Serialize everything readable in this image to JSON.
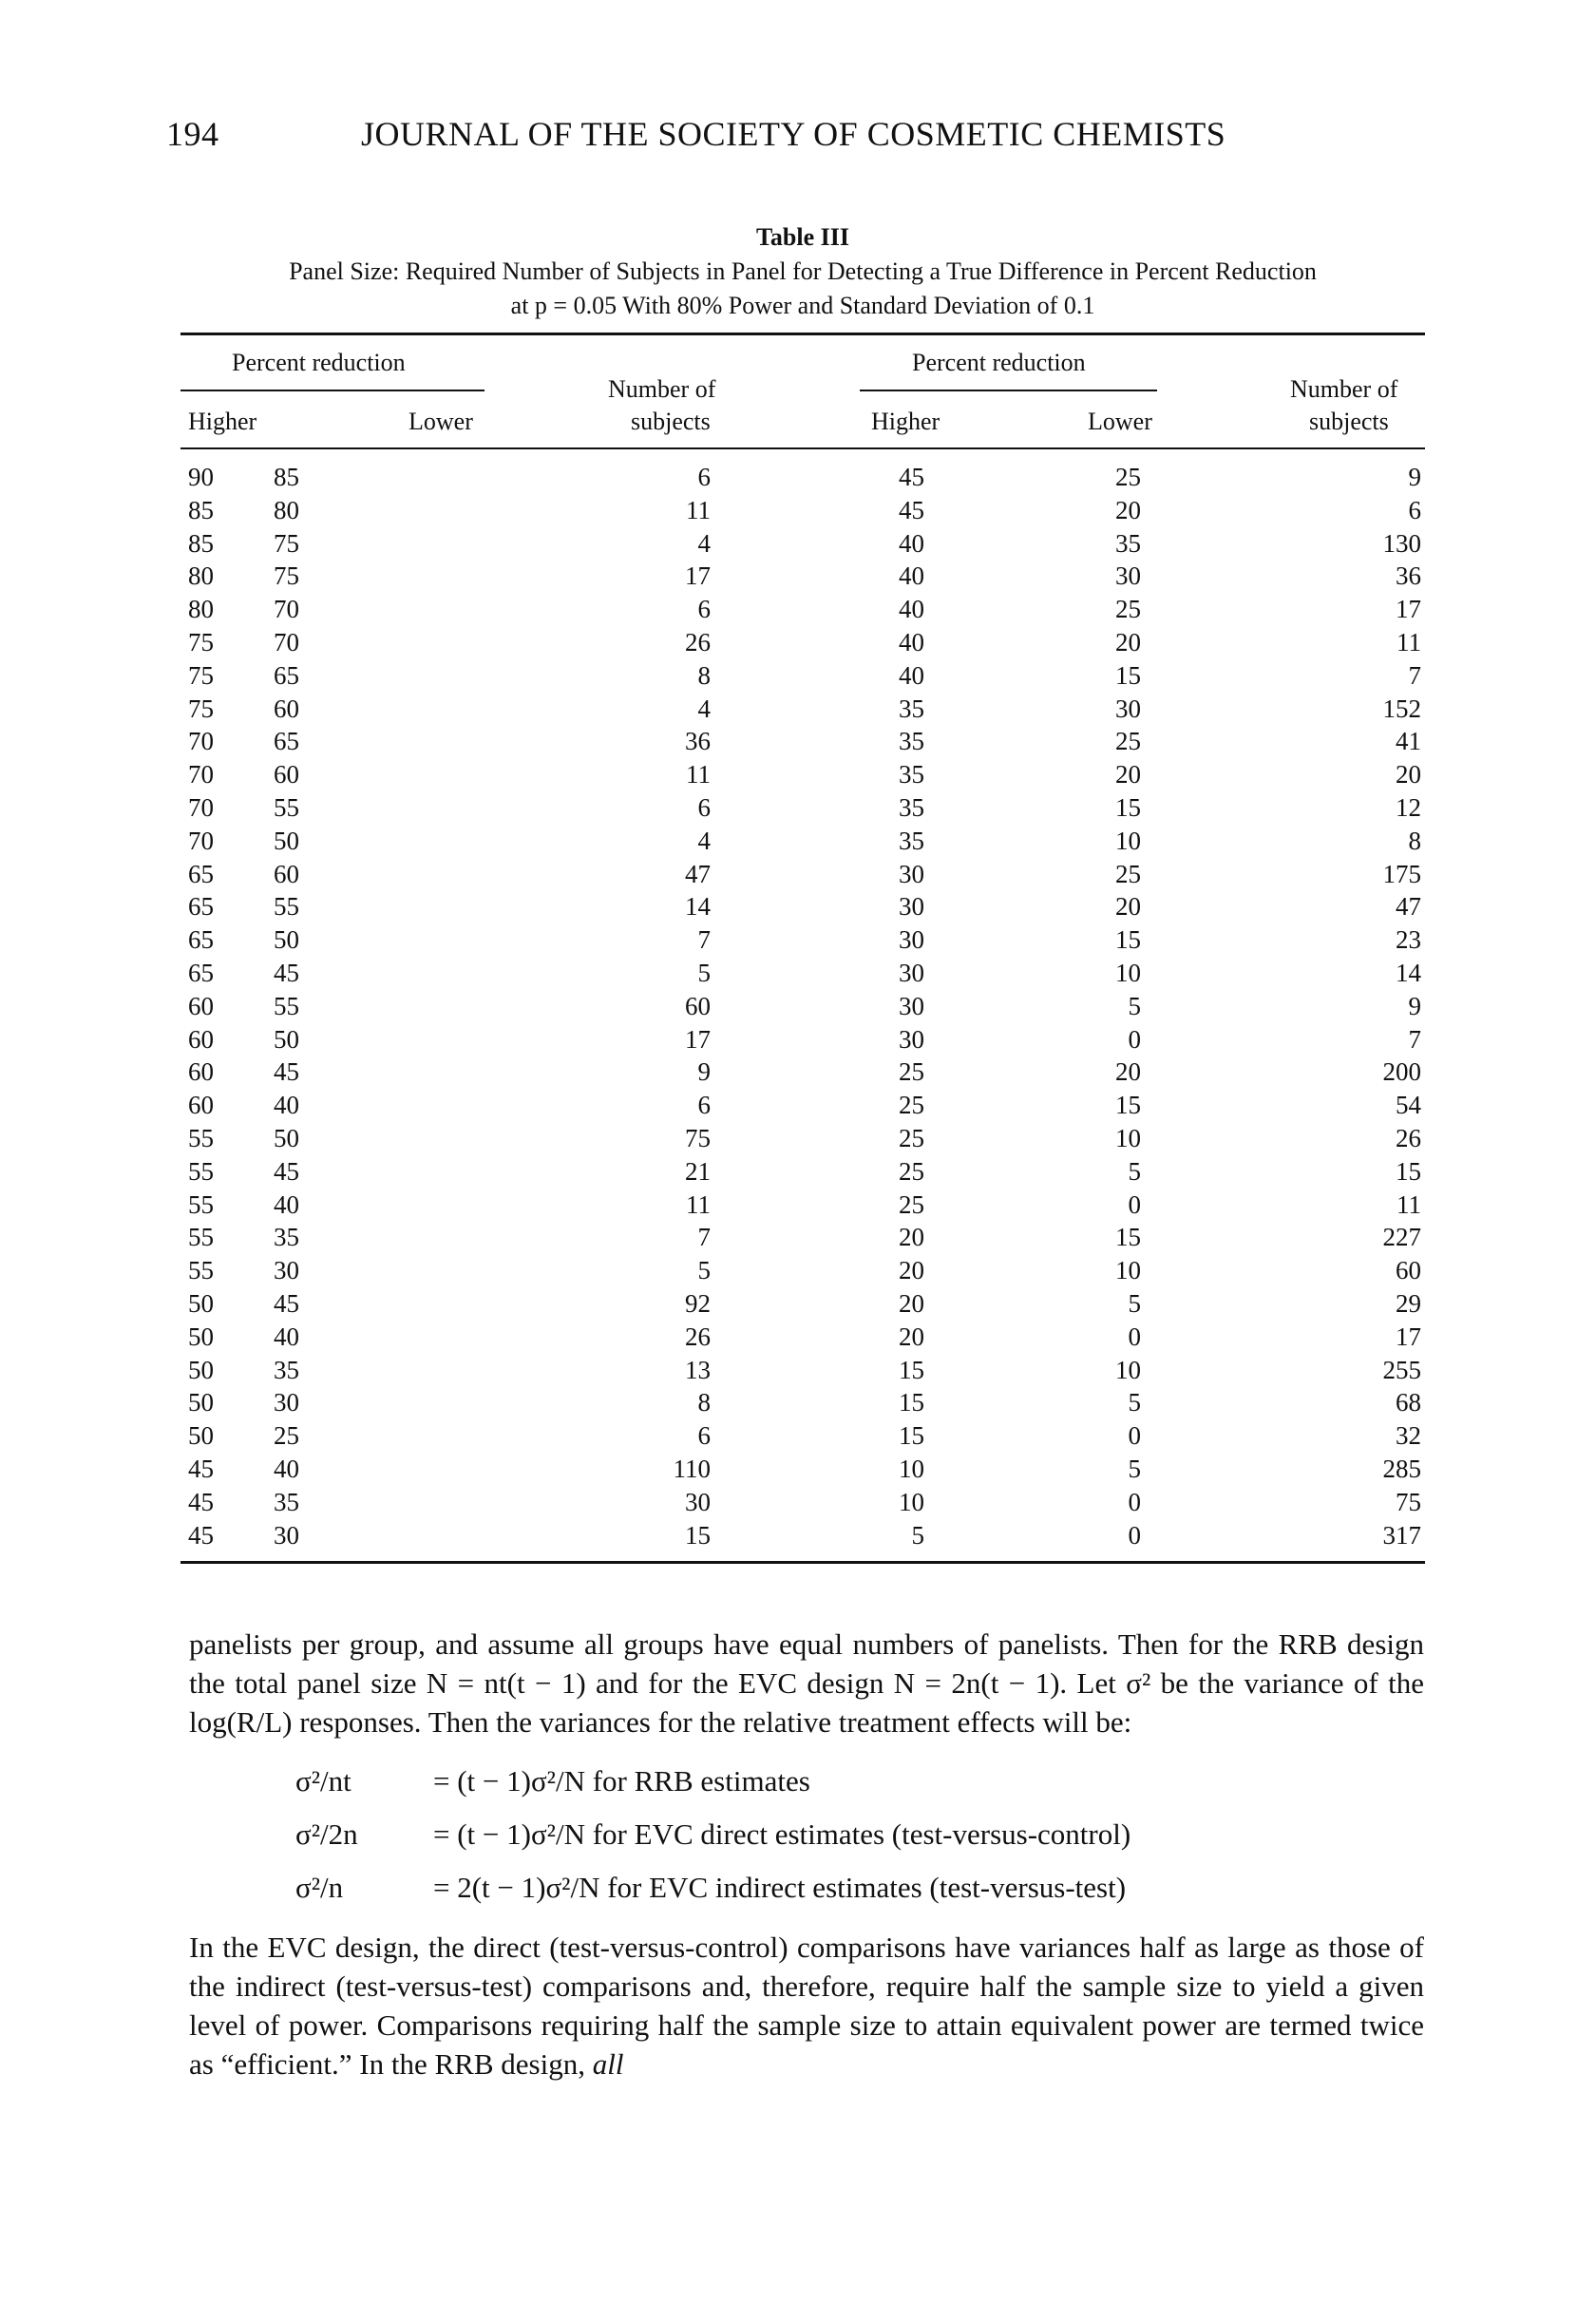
{
  "header": {
    "page_number": "194",
    "journal": "JOURNAL OF THE SOCIETY OF COSMETIC CHEMISTS"
  },
  "table": {
    "label": "Table III",
    "caption_line1": "Panel Size: Required Number of Subjects in Panel for Detecting a True Difference in Percent Reduction",
    "caption_line2": "at p = 0.05 With 80% Power and Standard Deviation of 0.1",
    "group_header": "Percent reduction",
    "col_higher": "Higher",
    "col_lower": "Lower",
    "col_number_line1": "Number of",
    "col_number_line2": "subjects",
    "rows": [
      [
        "90",
        "85",
        "6",
        "45",
        "25",
        "9"
      ],
      [
        "85",
        "80",
        "11",
        "45",
        "20",
        "6"
      ],
      [
        "85",
        "75",
        "4",
        "40",
        "35",
        "130"
      ],
      [
        "80",
        "75",
        "17",
        "40",
        "30",
        "36"
      ],
      [
        "80",
        "70",
        "6",
        "40",
        "25",
        "17"
      ],
      [
        "75",
        "70",
        "26",
        "40",
        "20",
        "11"
      ],
      [
        "75",
        "65",
        "8",
        "40",
        "15",
        "7"
      ],
      [
        "75",
        "60",
        "4",
        "35",
        "30",
        "152"
      ],
      [
        "70",
        "65",
        "36",
        "35",
        "25",
        "41"
      ],
      [
        "70",
        "60",
        "11",
        "35",
        "20",
        "20"
      ],
      [
        "70",
        "55",
        "6",
        "35",
        "15",
        "12"
      ],
      [
        "70",
        "50",
        "4",
        "35",
        "10",
        "8"
      ],
      [
        "65",
        "60",
        "47",
        "30",
        "25",
        "175"
      ],
      [
        "65",
        "55",
        "14",
        "30",
        "20",
        "47"
      ],
      [
        "65",
        "50",
        "7",
        "30",
        "15",
        "23"
      ],
      [
        "65",
        "45",
        "5",
        "30",
        "10",
        "14"
      ],
      [
        "60",
        "55",
        "60",
        "30",
        "5",
        "9"
      ],
      [
        "60",
        "50",
        "17",
        "30",
        "0",
        "7"
      ],
      [
        "60",
        "45",
        "9",
        "25",
        "20",
        "200"
      ],
      [
        "60",
        "40",
        "6",
        "25",
        "15",
        "54"
      ],
      [
        "55",
        "50",
        "75",
        "25",
        "10",
        "26"
      ],
      [
        "55",
        "45",
        "21",
        "25",
        "5",
        "15"
      ],
      [
        "55",
        "40",
        "11",
        "25",
        "0",
        "11"
      ],
      [
        "55",
        "35",
        "7",
        "20",
        "15",
        "227"
      ],
      [
        "55",
        "30",
        "5",
        "20",
        "10",
        "60"
      ],
      [
        "50",
        "45",
        "92",
        "20",
        "5",
        "29"
      ],
      [
        "50",
        "40",
        "26",
        "20",
        "0",
        "17"
      ],
      [
        "50",
        "35",
        "13",
        "15",
        "10",
        "255"
      ],
      [
        "50",
        "30",
        "8",
        "15",
        "5",
        "68"
      ],
      [
        "50",
        "25",
        "6",
        "15",
        "0",
        "32"
      ],
      [
        "45",
        "40",
        "110",
        "10",
        "5",
        "285"
      ],
      [
        "45",
        "35",
        "30",
        "10",
        "0",
        "75"
      ],
      [
        "45",
        "30",
        "15",
        "5",
        "0",
        "317"
      ]
    ]
  },
  "body": {
    "para1": "panelists per group, and assume all groups have equal numbers of panelists. Then for the RRB design the total panel size N = nt(t − 1) and for the EVC design N = 2n(t − 1). Let σ² be the variance of the log(R/L) responses. Then the variances for the relative treatment effects will be:",
    "eq1_lhs": "σ²/nt",
    "eq1_rhs": "= (t − 1)σ²/N for RRB estimates",
    "eq2_lhs": "σ²/2n",
    "eq2_rhs": "= (t − 1)σ²/N for EVC direct estimates (test-versus-control)",
    "eq3_lhs": "σ²/n",
    "eq3_rhs": "= 2(t − 1)σ²/N for EVC indirect estimates (test-versus-test)",
    "para2": "In the EVC design, the direct (test-versus-control) comparisons have variances half as large as those of the indirect (test-versus-test) comparisons and, therefore, require half the sample size to yield a given level of power. Comparisons requiring half the sample size to attain equivalent power are termed twice as “efficient.” In the RRB design,",
    "para2_italic": "all"
  }
}
